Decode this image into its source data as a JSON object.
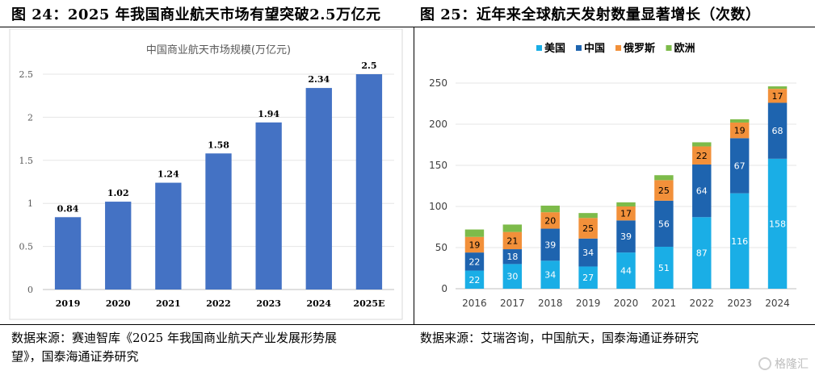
{
  "figures": {
    "left_title": "图 24：2025 年我国商业航天市场有望突破2.5万亿元",
    "right_title": "图 25：近年来全球航天发射数量显著增长（次数）",
    "left_source_line1": "数据来源：赛迪智库《2025 年我国商业航天产业发展形势展",
    "left_source_line2": "望》，国泰海通证券研究",
    "right_source": "数据来源：艾瑞咨询，中国航天，国泰海通证券研究",
    "watermark": "格隆汇"
  },
  "chart_data": [
    {
      "type": "bar",
      "title": "中国商业航天市场规模(万亿元)",
      "categories": [
        "2019",
        "2020",
        "2021",
        "2022",
        "2023",
        "2024",
        "2025E"
      ],
      "values": [
        0.84,
        1.02,
        1.24,
        1.58,
        1.94,
        2.34,
        2.5
      ],
      "data_labels": [
        "0.84",
        "1.02",
        "1.24",
        "1.58",
        "1.94",
        "2.34",
        "2.5"
      ],
      "ylim": [
        0,
        2.5
      ],
      "yticks": [
        "0",
        "0.5",
        "1",
        "1.5",
        "2",
        "2.5"
      ],
      "grid": true,
      "color": "#4472C4"
    },
    {
      "type": "bar",
      "stacked": true,
      "title": "",
      "categories": [
        "2016",
        "2017",
        "2018",
        "2019",
        "2020",
        "2021",
        "2022",
        "2023",
        "2024"
      ],
      "series": [
        {
          "name": "美国",
          "values": [
            22,
            30,
            34,
            27,
            44,
            51,
            87,
            116,
            158
          ],
          "color": "#1AAEE6",
          "label_color": "#ffffff"
        },
        {
          "name": "中国",
          "values": [
            22,
            18,
            39,
            34,
            39,
            56,
            64,
            67,
            68
          ],
          "color": "#1E64AF",
          "label_color": "#ffffff"
        },
        {
          "name": "俄罗斯",
          "values": [
            19,
            21,
            20,
            25,
            17,
            25,
            22,
            19,
            17
          ],
          "color": "#F2903A",
          "label_color": "#000000"
        },
        {
          "name": "欧洲",
          "values": [
            9,
            9,
            8,
            6,
            5,
            6,
            5,
            4,
            3
          ],
          "color": "#7DBB4A",
          "label_color": "#000000"
        }
      ],
      "labeled_series": [
        "美国",
        "中国",
        "俄罗斯"
      ],
      "ylim": [
        0,
        250
      ],
      "yticks": [
        "0",
        "50",
        "100",
        "150",
        "200",
        "250"
      ],
      "legend": "top-left",
      "grid": true
    }
  ]
}
